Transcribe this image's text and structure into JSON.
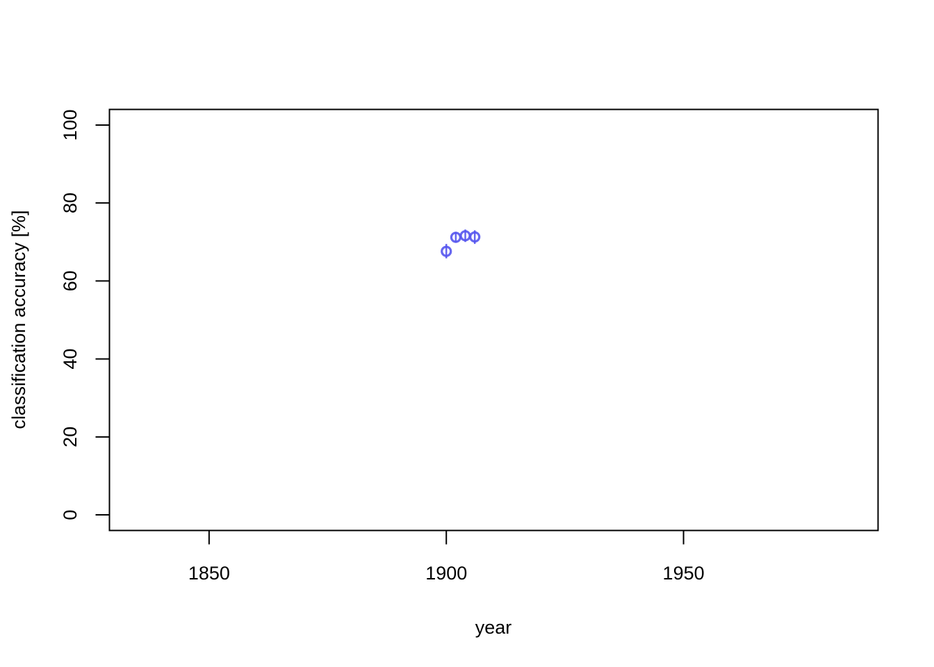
{
  "chart_data": {
    "type": "scatter",
    "title": "",
    "xlabel": "year",
    "ylabel": "classification accuracy [%]",
    "xlim": [
      1829,
      1991
    ],
    "ylim": [
      -4,
      104
    ],
    "x_ticks": [
      1850,
      1900,
      1950
    ],
    "x_tick_labels": [
      "1850",
      "1900",
      "1950"
    ],
    "y_ticks": [
      0,
      20,
      40,
      60,
      80,
      100
    ],
    "y_tick_labels": [
      "0",
      "20",
      "40",
      "60",
      "80",
      "100"
    ],
    "grid": false,
    "legend": "none",
    "marker": "open-circle-with-error-bar",
    "color": "#5555ee",
    "series": [
      {
        "points": [
          {
            "x": 1900,
            "y": 67.6,
            "low": 65.8,
            "high": 69.5
          },
          {
            "x": 1902,
            "y": 71.2,
            "low": 69.8,
            "high": 72.6
          },
          {
            "x": 1904,
            "y": 71.6,
            "low": 70.0,
            "high": 73.2
          },
          {
            "x": 1906,
            "y": 71.3,
            "low": 69.5,
            "high": 73.0
          }
        ]
      }
    ]
  }
}
